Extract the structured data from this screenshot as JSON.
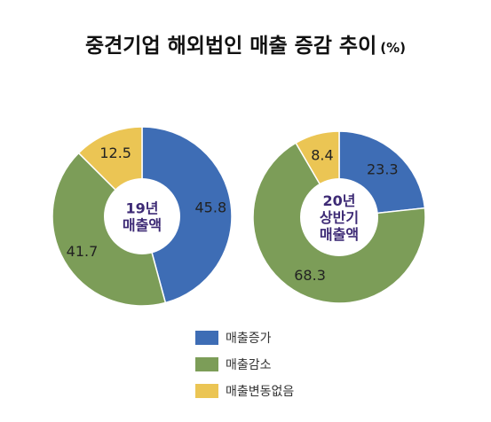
{
  "title": "중견기업 해외법인 매출 증감 추이",
  "unit": "(%)",
  "colors": {
    "increase": "#3e6db5",
    "decrease": "#7c9d58",
    "nochange": "#ebc554",
    "center_text": "#3d2a75"
  },
  "chart_data": [
    {
      "type": "pie",
      "center_label": [
        "19년",
        "매출액"
      ],
      "slices": [
        {
          "category": "매출증가",
          "value": 45.8,
          "label": "45.8"
        },
        {
          "category": "매출감소",
          "value": 41.7,
          "label": "41.7"
        },
        {
          "category": "매출변동없음",
          "value": 12.5,
          "label": "12.5"
        }
      ]
    },
    {
      "type": "pie",
      "center_label": [
        "20년",
        "상반기",
        "매출액"
      ],
      "slices": [
        {
          "category": "매출증가",
          "value": 23.3,
          "label": "23.3"
        },
        {
          "category": "매출감소",
          "value": 68.3,
          "label": "68.3"
        },
        {
          "category": "매출변동없음",
          "value": 8.4,
          "label": "8.4"
        }
      ]
    }
  ],
  "legend": [
    {
      "label": "매출증가",
      "color": "#3e6db5"
    },
    {
      "label": "매출감소",
      "color": "#7c9d58"
    },
    {
      "label": "매출변동없음",
      "color": "#ebc554"
    }
  ]
}
